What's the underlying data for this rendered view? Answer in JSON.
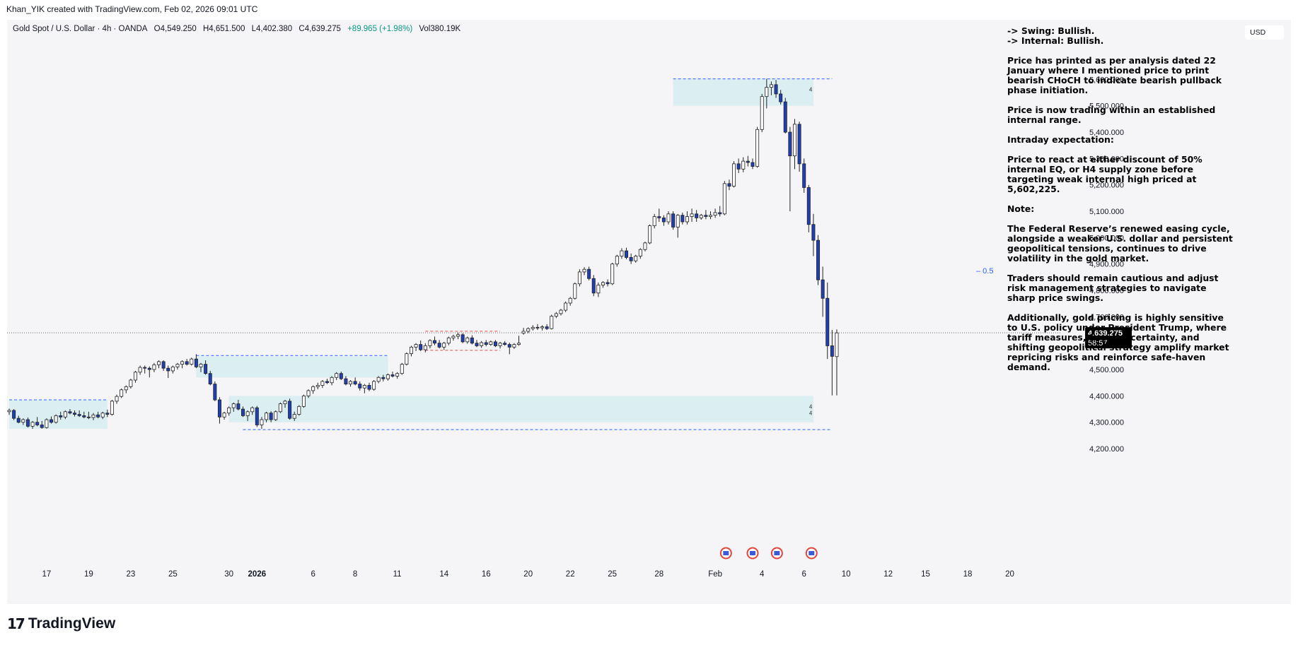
{
  "header": {
    "created_by": "Khan_YIK created with TradingView.com, Feb 02, 2026 09:01 UTC"
  },
  "legend": {
    "symbol": "Gold Spot / U.S. Dollar · 4h · OANDA",
    "open": "O4,549.250",
    "high": "H4,651.500",
    "low": "L4,402.380",
    "close": "C4,639.275",
    "change": "+89.965 (+1.98%)",
    "volume": "Vol380.19K"
  },
  "currency_label": "USD",
  "notes": [
    "-> Swing:  Bullish.",
    "-> Internal:  Bullish.",
    "Price has printed as per analysis dated 22 January where I mentioned price to print bearish CHoCH to indicate bearish pullback phase initiation.",
    "Price is now trading within an established internal range.",
    "Intraday expectation:",
    "Price to react at either discount of 50% internal EQ, or H4 supply zone before targeting weak internal high priced at 5,602,225.",
    "Note:",
    "The Federal Reserve’s renewed easing cycle, alongside a weaker U.S. dollar and persistent geopolitical tensions, continues to drive volatility in the gold market.",
    "Traders should remain cautious and adjust risk management strategies to navigate sharp price swings.",
    "Additionally, gold pricing is highly sensitive to U.S. policy under President Trump, where tariff measures, fiscal uncertainty, and shifting geopolitical strategy amplify market repricing risks and reinforce safe-haven demand."
  ],
  "footer": {
    "brand": "TradingView",
    "logo_text": "17"
  },
  "colors": {
    "bull": "#ffffff",
    "bear": "#1f3fb5",
    "zone": "#d6ecf0",
    "zone_border": "#2962ff",
    "frame_bg": "#f5f4f6"
  },
  "chart_data": {
    "type": "candlestick",
    "timeframe": "4h",
    "ylim": [
      4160,
      5660
    ],
    "y_ticks": [
      4200,
      4300,
      4400,
      4500,
      4600,
      4700,
      4800,
      4900,
      5000,
      5100,
      5200,
      5300,
      5400,
      5500,
      5600
    ],
    "y_tick_labels": [
      "4,200.000",
      "4,300.000",
      "4,400.000",
      "4,500.000",
      "4,600.000",
      "4,700.000",
      "4,800.000",
      "4,900.000",
      "5,000.000",
      "5,100.000",
      "5,200.000",
      "5,300.000",
      "5,400.000",
      "5,500.000",
      "5,600.000"
    ],
    "x_labels": [
      {
        "label": "17",
        "index": 8
      },
      {
        "label": "19",
        "index": 17
      },
      {
        "label": "23",
        "index": 26
      },
      {
        "label": "25",
        "index": 35
      },
      {
        "label": "30",
        "index": 47
      },
      {
        "label": "2026",
        "index": 53,
        "bold": true
      },
      {
        "label": "6",
        "index": 65
      },
      {
        "label": "8",
        "index": 74
      },
      {
        "label": "11",
        "index": 83
      },
      {
        "label": "14",
        "index": 93
      },
      {
        "label": "16",
        "index": 102
      },
      {
        "label": "20",
        "index": 111
      },
      {
        "label": "22",
        "index": 120
      },
      {
        "label": "25",
        "index": 129
      },
      {
        "label": "28",
        "index": 139
      },
      {
        "label": "Feb",
        "index": 151
      },
      {
        "label": "4",
        "index": 161
      },
      {
        "label": "6",
        "index": 170
      },
      {
        "label": "10",
        "index": 179
      },
      {
        "label": "12",
        "index": 188
      },
      {
        "label": "15",
        "index": 196
      },
      {
        "label": "18",
        "index": 205
      },
      {
        "label": "20",
        "index": 214
      }
    ],
    "last_price": {
      "value": 4639.275,
      "label": "4,639.275",
      "countdown": "58:57"
    },
    "eq_label": "0.5",
    "eq_level": 4875,
    "zone_marker": "4",
    "zones": [
      {
        "name": "h4-supply-zone",
        "start": 142,
        "end": 172,
        "low": 5500,
        "high": 5602
      },
      {
        "name": "demand-zone-upper",
        "start": 47,
        "end": 172,
        "low": 4300,
        "high": 4400
      },
      {
        "name": "demand-zone-lower",
        "start": 0,
        "end": 21,
        "low": 4275,
        "high": 4385
      },
      {
        "name": "mid-zone",
        "start": 40,
        "end": 81,
        "low": 4470,
        "high": 4550
      }
    ],
    "levels": [
      {
        "name": "weak-high-line",
        "start": 142,
        "end": 176,
        "value": 5602,
        "color": "#2962ff"
      },
      {
        "name": "low-line",
        "start": 50,
        "end": 176,
        "value": 4272,
        "color": "#2962ff"
      },
      {
        "name": "left-high-line",
        "start": 0,
        "end": 21,
        "value": 4385,
        "color": "#2962ff"
      },
      {
        "name": "mid-high-line",
        "start": 40,
        "end": 81,
        "value": 4553,
        "color": "#2962ff"
      },
      {
        "name": "range-high-line",
        "start": 89,
        "end": 105,
        "value": 4645,
        "color": "#e05050"
      },
      {
        "name": "range-low-line",
        "start": 89,
        "end": 105,
        "value": 4573,
        "color": "#e05050"
      }
    ],
    "ohlc": [
      [
        4340,
        4352,
        4328,
        4345
      ],
      [
        4345,
        4350,
        4308,
        4315
      ],
      [
        4315,
        4325,
        4296,
        4300
      ],
      [
        4300,
        4315,
        4290,
        4310
      ],
      [
        4310,
        4318,
        4280,
        4285
      ],
      [
        4285,
        4305,
        4275,
        4300
      ],
      [
        4300,
        4320,
        4285,
        4290
      ],
      [
        4290,
        4305,
        4276,
        4280
      ],
      [
        4280,
        4315,
        4276,
        4310
      ],
      [
        4310,
        4322,
        4295,
        4300
      ],
      [
        4300,
        4330,
        4295,
        4325
      ],
      [
        4325,
        4340,
        4310,
        4320
      ],
      [
        4320,
        4345,
        4312,
        4340
      ],
      [
        4340,
        4350,
        4330,
        4335
      ],
      [
        4335,
        4345,
        4322,
        4330
      ],
      [
        4330,
        4345,
        4320,
        4325
      ],
      [
        4325,
        4340,
        4315,
        4320
      ],
      [
        4320,
        4340,
        4312,
        4318
      ],
      [
        4318,
        4335,
        4308,
        4328
      ],
      [
        4328,
        4340,
        4315,
        4320
      ],
      [
        4320,
        4340,
        4312,
        4335
      ],
      [
        4335,
        4348,
        4320,
        4330
      ],
      [
        4330,
        4385,
        4325,
        4380
      ],
      [
        4380,
        4405,
        4370,
        4398
      ],
      [
        4398,
        4428,
        4392,
        4423
      ],
      [
        4423,
        4440,
        4410,
        4435
      ],
      [
        4435,
        4465,
        4428,
        4460
      ],
      [
        4460,
        4495,
        4450,
        4490
      ],
      [
        4490,
        4515,
        4480,
        4508
      ],
      [
        4508,
        4515,
        4485,
        4505
      ],
      [
        4505,
        4512,
        4470,
        4500
      ],
      [
        4500,
        4525,
        4490,
        4518
      ],
      [
        4518,
        4535,
        4505,
        4530
      ],
      [
        4530,
        4535,
        4495,
        4505
      ],
      [
        4505,
        4515,
        4468,
        4495
      ],
      [
        4495,
        4515,
        4485,
        4510
      ],
      [
        4510,
        4525,
        4500,
        4520
      ],
      [
        4520,
        4535,
        4505,
        4530
      ],
      [
        4530,
        4540,
        4515,
        4520
      ],
      [
        4520,
        4545,
        4515,
        4540
      ],
      [
        4540,
        4558,
        4505,
        4510
      ],
      [
        4510,
        4525,
        4490,
        4520
      ],
      [
        4520,
        4535,
        4480,
        4485
      ],
      [
        4485,
        4495,
        4440,
        4445
      ],
      [
        4445,
        4455,
        4380,
        4385
      ],
      [
        4385,
        4395,
        4295,
        4320
      ],
      [
        4320,
        4340,
        4310,
        4335
      ],
      [
        4335,
        4360,
        4325,
        4355
      ],
      [
        4355,
        4375,
        4340,
        4370
      ],
      [
        4370,
        4385,
        4345,
        4350
      ],
      [
        4350,
        4360,
        4320,
        4325
      ],
      [
        4325,
        4345,
        4305,
        4340
      ],
      [
        4340,
        4360,
        4328,
        4355
      ],
      [
        4355,
        4362,
        4282,
        4290
      ],
      [
        4290,
        4320,
        4275,
        4310
      ],
      [
        4310,
        4340,
        4300,
        4335
      ],
      [
        4335,
        4342,
        4300,
        4310
      ],
      [
        4310,
        4345,
        4305,
        4340
      ],
      [
        4340,
        4375,
        4335,
        4370
      ],
      [
        4370,
        4385,
        4355,
        4380
      ],
      [
        4380,
        4390,
        4310,
        4315
      ],
      [
        4315,
        4340,
        4305,
        4330
      ],
      [
        4330,
        4365,
        4325,
        4360
      ],
      [
        4360,
        4405,
        4355,
        4400
      ],
      [
        4400,
        4425,
        4392,
        4420
      ],
      [
        4420,
        4440,
        4408,
        4435
      ],
      [
        4435,
        4450,
        4425,
        4440
      ],
      [
        4440,
        4460,
        4430,
        4455
      ],
      [
        4455,
        4465,
        4445,
        4450
      ],
      [
        4450,
        4475,
        4440,
        4470
      ],
      [
        4470,
        4490,
        4460,
        4485
      ],
      [
        4485,
        4492,
        4460,
        4465
      ],
      [
        4465,
        4475,
        4440,
        4445
      ],
      [
        4445,
        4460,
        4435,
        4455
      ],
      [
        4455,
        4470,
        4440,
        4445
      ],
      [
        4445,
        4455,
        4420,
        4430
      ],
      [
        4430,
        4445,
        4410,
        4440
      ],
      [
        4440,
        4450,
        4418,
        4425
      ],
      [
        4425,
        4460,
        4420,
        4455
      ],
      [
        4455,
        4475,
        4448,
        4470
      ],
      [
        4470,
        4480,
        4455,
        4465
      ],
      [
        4465,
        4485,
        4458,
        4480
      ],
      [
        4480,
        4492,
        4470,
        4475
      ],
      [
        4475,
        4490,
        4465,
        4485
      ],
      [
        4485,
        4525,
        4480,
        4520
      ],
      [
        4520,
        4565,
        4515,
        4560
      ],
      [
        4560,
        4590,
        4550,
        4585
      ],
      [
        4585,
        4600,
        4570,
        4595
      ],
      [
        4595,
        4610,
        4570,
        4575
      ],
      [
        4575,
        4600,
        4565,
        4590
      ],
      [
        4590,
        4615,
        4580,
        4610
      ],
      [
        4610,
        4625,
        4592,
        4600
      ],
      [
        4600,
        4612,
        4580,
        4585
      ],
      [
        4585,
        4605,
        4575,
        4600
      ],
      [
        4600,
        4625,
        4592,
        4620
      ],
      [
        4620,
        4632,
        4610,
        4626
      ],
      [
        4626,
        4640,
        4615,
        4632
      ],
      [
        4632,
        4638,
        4600,
        4605
      ],
      [
        4605,
        4625,
        4598,
        4620
      ],
      [
        4620,
        4630,
        4595,
        4600
      ],
      [
        4600,
        4612,
        4585,
        4590
      ],
      [
        4590,
        4608,
        4582,
        4602
      ],
      [
        4602,
        4612,
        4588,
        4595
      ],
      [
        4595,
        4610,
        4590,
        4605
      ],
      [
        4605,
        4612,
        4585,
        4590
      ],
      [
        4590,
        4605,
        4580,
        4600
      ],
      [
        4600,
        4608,
        4590,
        4595
      ],
      [
        4595,
        4602,
        4558,
        4585
      ],
      [
        4585,
        4600,
        4578,
        4595
      ],
      [
        4595,
        4628,
        4590,
        4600
      ],
      [
        4638,
        4658,
        4632,
        4645
      ],
      [
        4645,
        4660,
        4638,
        4655
      ],
      [
        4655,
        4668,
        4648,
        4660
      ],
      [
        4660,
        4672,
        4650,
        4658
      ],
      [
        4658,
        4668,
        4648,
        4662
      ],
      [
        4662,
        4672,
        4650,
        4655
      ],
      [
        4655,
        4708,
        4652,
        4702
      ],
      [
        4702,
        4718,
        4695,
        4712
      ],
      [
        4712,
        4730,
        4705,
        4725
      ],
      [
        4725,
        4758,
        4718,
        4752
      ],
      [
        4752,
        4775,
        4742,
        4770
      ],
      [
        4770,
        4830,
        4765,
        4825
      ],
      [
        4825,
        4880,
        4815,
        4870
      ],
      [
        4870,
        4888,
        4858,
        4880
      ],
      [
        4880,
        4890,
        4838,
        4845
      ],
      [
        4845,
        4858,
        4778,
        4790
      ],
      [
        4790,
        4830,
        4775,
        4820
      ],
      [
        4820,
        4835,
        4810,
        4830
      ],
      [
        4830,
        4842,
        4815,
        4825
      ],
      [
        4825,
        4905,
        4820,
        4900
      ],
      [
        4900,
        4935,
        4890,
        4930
      ],
      [
        4930,
        4960,
        4920,
        4950
      ],
      [
        4950,
        4962,
        4918,
        4925
      ],
      [
        4925,
        4940,
        4900,
        4912
      ],
      [
        4912,
        4935,
        4905,
        4930
      ],
      [
        4930,
        4960,
        4920,
        4955
      ],
      [
        4955,
        4985,
        4948,
        4980
      ],
      [
        4980,
        5050,
        4975,
        5045
      ],
      [
        5045,
        5090,
        5035,
        5080
      ],
      [
        5080,
        5110,
        5060,
        5075
      ],
      [
        5075,
        5085,
        5045,
        5060
      ],
      [
        5060,
        5100,
        5050,
        5090
      ],
      [
        5090,
        5100,
        5030,
        5040
      ],
      [
        5040,
        5090,
        5000,
        5085
      ],
      [
        5085,
        5095,
        5050,
        5060
      ],
      [
        5060,
        5100,
        5050,
        5080
      ],
      [
        5080,
        5110,
        5060,
        5090
      ],
      [
        5090,
        5105,
        5060,
        5075
      ],
      [
        5075,
        5090,
        5068,
        5085
      ],
      [
        5085,
        5105,
        5070,
        5080
      ],
      [
        5080,
        5100,
        5070,
        5085
      ],
      [
        5085,
        5110,
        5075,
        5095
      ],
      [
        5095,
        5120,
        5080,
        5090
      ],
      [
        5090,
        5215,
        5085,
        5205
      ],
      [
        5205,
        5220,
        5180,
        5195
      ],
      [
        5195,
        5290,
        5190,
        5280
      ],
      [
        5280,
        5300,
        5245,
        5260
      ],
      [
        5260,
        5305,
        5248,
        5290
      ],
      [
        5290,
        5310,
        5270,
        5285
      ],
      [
        5285,
        5300,
        5260,
        5270
      ],
      [
        5270,
        5420,
        5265,
        5410
      ],
      [
        5410,
        5545,
        5400,
        5535
      ],
      [
        5535,
        5602,
        5490,
        5570
      ],
      [
        5570,
        5592,
        5540,
        5580
      ],
      [
        5580,
        5598,
        5530,
        5545
      ],
      [
        5545,
        5560,
        5505,
        5515
      ],
      [
        5515,
        5530,
        5395,
        5400
      ],
      [
        5400,
        5420,
        5100,
        5310
      ],
      [
        5310,
        5450,
        5260,
        5430
      ],
      [
        5430,
        5440,
        5250,
        5280
      ],
      [
        5280,
        5300,
        5170,
        5190
      ],
      [
        5190,
        5200,
        5020,
        5050
      ],
      [
        5050,
        5090,
        4930,
        4990
      ],
      [
        4990,
        5010,
        4820,
        4840
      ],
      [
        4840,
        4890,
        4700,
        4770
      ],
      [
        4770,
        4830,
        4540,
        4590
      ],
      [
        4590,
        4650,
        4402,
        4550
      ],
      [
        4549,
        4652,
        4402,
        4639
      ]
    ]
  }
}
